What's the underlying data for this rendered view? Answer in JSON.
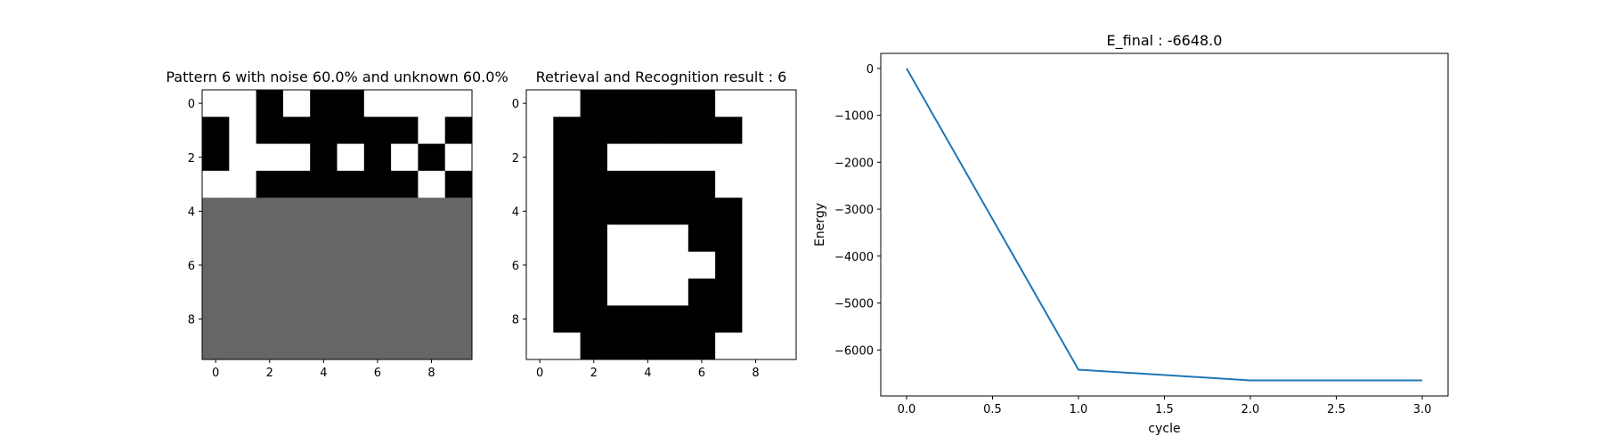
{
  "chart_data": [
    {
      "type": "heatmap",
      "title": "Pattern 6 with noise 60.0% and unknown 60.0%",
      "colormap": {
        "1": "#000000",
        "0": "#ffffff",
        "-1": "#666666"
      },
      "grid": [
        [
          0,
          0,
          1,
          0,
          1,
          1,
          0,
          0,
          0,
          0
        ],
        [
          1,
          0,
          1,
          1,
          1,
          1,
          1,
          1,
          0,
          1
        ],
        [
          1,
          0,
          0,
          0,
          1,
          0,
          1,
          0,
          1,
          0
        ],
        [
          0,
          0,
          1,
          1,
          1,
          1,
          1,
          1,
          0,
          1
        ],
        [
          -1,
          -1,
          -1,
          -1,
          -1,
          -1,
          -1,
          -1,
          -1,
          -1
        ],
        [
          -1,
          -1,
          -1,
          -1,
          -1,
          -1,
          -1,
          -1,
          -1,
          -1
        ],
        [
          -1,
          -1,
          -1,
          -1,
          -1,
          -1,
          -1,
          -1,
          -1,
          -1
        ],
        [
          -1,
          -1,
          -1,
          -1,
          -1,
          -1,
          -1,
          -1,
          -1,
          -1
        ],
        [
          -1,
          -1,
          -1,
          -1,
          -1,
          -1,
          -1,
          -1,
          -1,
          -1
        ],
        [
          -1,
          -1,
          -1,
          -1,
          -1,
          -1,
          -1,
          -1,
          -1,
          -1
        ]
      ],
      "xticks": [
        0,
        2,
        4,
        6,
        8
      ],
      "yticks": [
        0,
        2,
        4,
        6,
        8
      ]
    },
    {
      "type": "heatmap",
      "title": "Retrieval and Recognition result : 6",
      "colormap": {
        "1": "#000000",
        "0": "#ffffff"
      },
      "grid": [
        [
          0,
          0,
          1,
          1,
          1,
          1,
          1,
          0,
          0,
          0
        ],
        [
          0,
          1,
          1,
          1,
          1,
          1,
          1,
          1,
          0,
          0
        ],
        [
          0,
          1,
          1,
          0,
          0,
          0,
          0,
          0,
          0,
          0
        ],
        [
          0,
          1,
          1,
          1,
          1,
          1,
          1,
          0,
          0,
          0
        ],
        [
          0,
          1,
          1,
          1,
          1,
          1,
          1,
          1,
          0,
          0
        ],
        [
          0,
          1,
          1,
          0,
          0,
          0,
          1,
          1,
          0,
          0
        ],
        [
          0,
          1,
          1,
          0,
          0,
          0,
          0,
          1,
          0,
          0
        ],
        [
          0,
          1,
          1,
          0,
          0,
          0,
          1,
          1,
          0,
          0
        ],
        [
          0,
          1,
          1,
          1,
          1,
          1,
          1,
          1,
          0,
          0
        ],
        [
          0,
          0,
          1,
          1,
          1,
          1,
          1,
          0,
          0,
          0
        ]
      ],
      "xticks": [
        0,
        2,
        4,
        6,
        8
      ],
      "yticks": [
        0,
        2,
        4,
        6,
        8
      ]
    },
    {
      "type": "line",
      "title": "E_final : -6648.0",
      "xlabel": "cycle",
      "ylabel": "Energy",
      "series": [
        {
          "x": [
            0,
            1,
            2,
            3
          ],
          "values": [
            0,
            -6420,
            -6648,
            -6648
          ],
          "color": "#1f77b4"
        }
      ],
      "xlim": [
        -0.15,
        3.15
      ],
      "ylim": [
        -6980,
        320
      ],
      "xticks": [
        0.0,
        0.5,
        1.0,
        1.5,
        2.0,
        2.5,
        3.0
      ],
      "xtick_labels": [
        "0.0",
        "0.5",
        "1.0",
        "1.5",
        "2.0",
        "2.5",
        "3.0"
      ],
      "yticks": [
        0,
        -1000,
        -2000,
        -3000,
        -4000,
        -5000,
        -6000
      ],
      "ytick_labels": [
        "0",
        "−1000",
        "−2000",
        "−3000",
        "−4000",
        "−5000",
        "−6000"
      ]
    }
  ]
}
